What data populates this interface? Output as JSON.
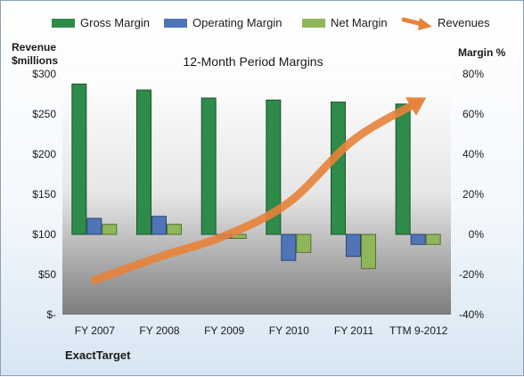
{
  "chart_data": {
    "type": "bar",
    "title": "12-Month Period Margins",
    "company": "ExactTarget",
    "left_axis_label": [
      "Revenue",
      "$millions"
    ],
    "right_axis_label": "Margin %",
    "categories": [
      "FY 2007",
      "FY 2008",
      "FY 2009",
      "FY 2010",
      "FY 2011",
      "TTM 9-2012"
    ],
    "left_ticks": [
      "$-",
      "$50",
      "$100",
      "$150",
      "$200",
      "$250",
      "$300"
    ],
    "right_ticks": [
      "-40%",
      "-20%",
      "0%",
      "20%",
      "40%",
      "60%",
      "80%"
    ],
    "ylim_left": [
      0,
      300
    ],
    "ylim_right": [
      -40,
      80
    ],
    "series": [
      {
        "name": "Gross Margin",
        "axis": "right",
        "type": "bar",
        "color": "#2e8b4a",
        "values": [
          75,
          72,
          68,
          67,
          66,
          65
        ]
      },
      {
        "name": "Operating Margin",
        "axis": "right",
        "type": "bar",
        "color": "#4f74b8",
        "values": [
          8,
          9,
          -2,
          -13,
          -11,
          -5
        ]
      },
      {
        "name": "Net Margin",
        "axis": "right",
        "type": "bar",
        "color": "#8fb65a",
        "values": [
          5,
          5,
          -2,
          -9,
          -17,
          -5
        ]
      },
      {
        "name": "Revenues",
        "axis": "left",
        "type": "line",
        "color": "#e8823a",
        "values": [
          43,
          72,
          98,
          140,
          218,
          265
        ]
      }
    ],
    "legend_position": "top",
    "grid": false
  }
}
